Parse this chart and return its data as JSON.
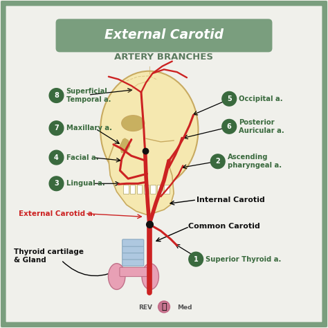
{
  "bg_color": "#f0f0eb",
  "border_color": "#7a9e7e",
  "title1": "External Carotid",
  "title2": "ARTERY BRANCHES",
  "title_bg": "#7a9e7e",
  "title1_color": "#ffffff",
  "title2_color": "#5a7a5e",
  "label_color": "#3a6a3e",
  "red_color": "#cc2222",
  "black_color": "#222222",
  "artery_color": "#cc2222",
  "skull_fill": "#f5e8b0",
  "skull_outline": "#c8aa60",
  "watermark": "REV  Med"
}
